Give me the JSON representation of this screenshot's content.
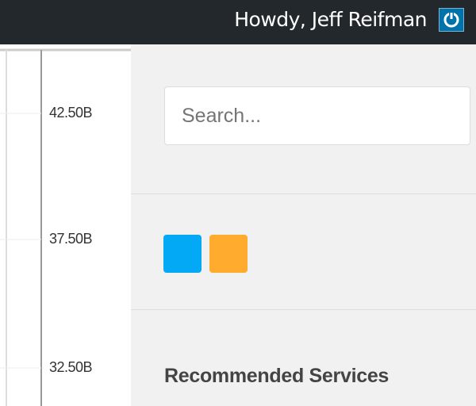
{
  "top_bar": {
    "greeting": "Howdy, Jeff Reifman"
  },
  "chart_fragment": {
    "axis_labels": [
      "42.50B",
      "37.50B",
      "32.50B"
    ]
  },
  "sidebar": {
    "search_placeholder": "Search...",
    "heading": "Recommended Services"
  }
}
